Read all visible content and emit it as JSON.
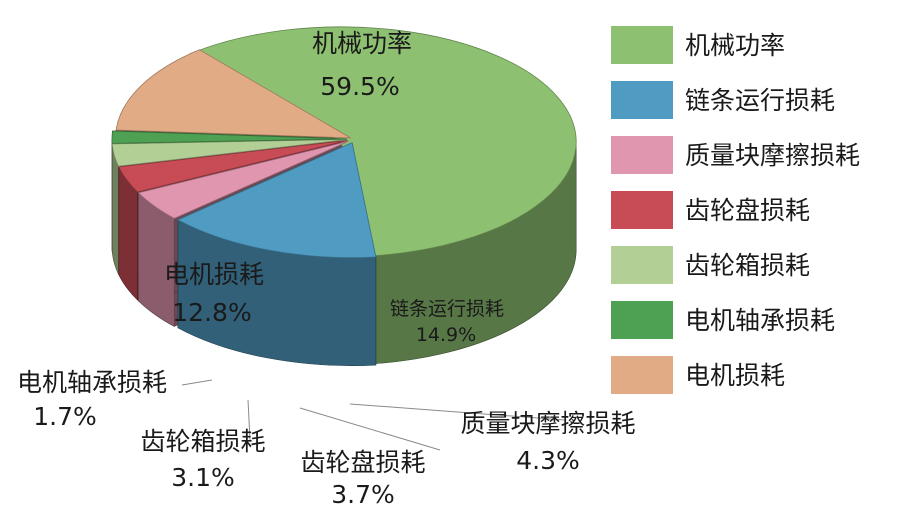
{
  "chart_data": {
    "type": "pie",
    "style": "3d-exploded",
    "legend_position": "right",
    "series": [
      {
        "name": "机械功率",
        "value": 59.5,
        "value_label": "59.5%",
        "color": "#8dc071"
      },
      {
        "name": "链条运行损耗",
        "value": 14.9,
        "value_label": "14.9%",
        "color": "#4f9bc2"
      },
      {
        "name": "质量块摩擦损耗",
        "value": 4.3,
        "value_label": "4.3%",
        "color": "#e096ae"
      },
      {
        "name": "齿轮盘损耗",
        "value": 3.7,
        "value_label": "3.7%",
        "color": "#c84c56"
      },
      {
        "name": "齿轮箱损耗",
        "value": 3.1,
        "value_label": "3.1%",
        "color": "#b2cf96"
      },
      {
        "name": "电机轴承损耗",
        "value": 1.7,
        "value_label": "1.7%",
        "color": "#4ea152"
      },
      {
        "name": "电机损耗",
        "value": 12.8,
        "value_label": "12.8%",
        "color": "#e1ab85"
      }
    ]
  }
}
